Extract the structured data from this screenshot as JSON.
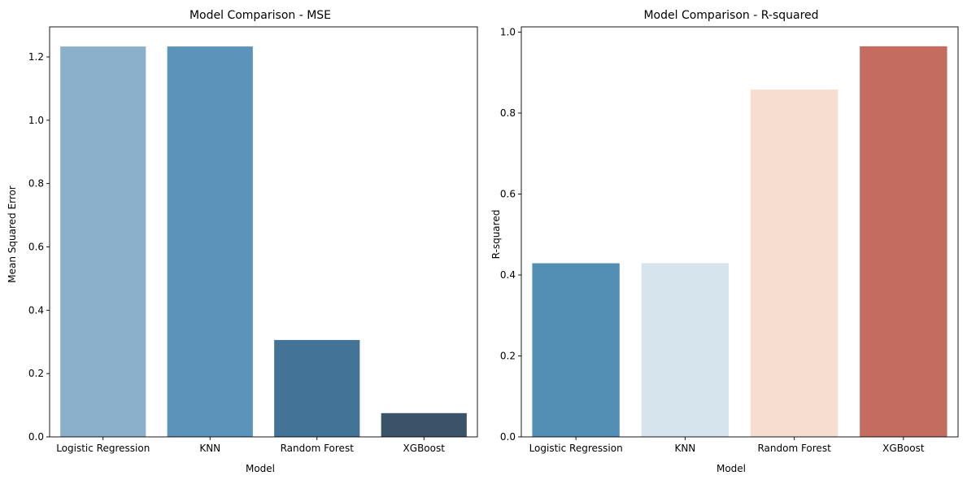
{
  "chart_data": [
    {
      "type": "bar",
      "title": "Model Comparison - MSE",
      "xlabel": "Model",
      "ylabel": "Mean Squared Error",
      "categories": [
        "Logistic Regression",
        "KNN",
        "Random Forest",
        "XGBoost"
      ],
      "values": [
        1.233,
        1.233,
        0.306,
        0.075
      ],
      "colors": [
        "#8AB0CB",
        "#5B93BA",
        "#437397",
        "#3B5368"
      ],
      "ylim": [
        0,
        1.295
      ],
      "yticks": [
        0.0,
        0.2,
        0.4,
        0.6,
        0.8,
        1.0,
        1.2
      ],
      "ytick_labels": [
        "0.0",
        "0.2",
        "0.4",
        "0.6",
        "0.8",
        "1.0",
        "1.2"
      ],
      "grid": false
    },
    {
      "type": "bar",
      "title": "Model Comparison - R-squared",
      "xlabel": "Model",
      "ylabel": "R-squared",
      "categories": [
        "Logistic Regression",
        "KNN",
        "Random Forest",
        "XGBoost"
      ],
      "values": [
        0.429,
        0.429,
        0.858,
        0.965
      ],
      "colors": [
        "#538FB5",
        "#D5E4ED",
        "#F6DDD0",
        "#C46C5F"
      ],
      "ylim": [
        0,
        1.013
      ],
      "yticks": [
        0.0,
        0.2,
        0.4,
        0.6,
        0.8,
        1.0
      ],
      "ytick_labels": [
        "0.0",
        "0.2",
        "0.4",
        "0.6",
        "0.8",
        "1.0"
      ],
      "grid": false
    }
  ]
}
